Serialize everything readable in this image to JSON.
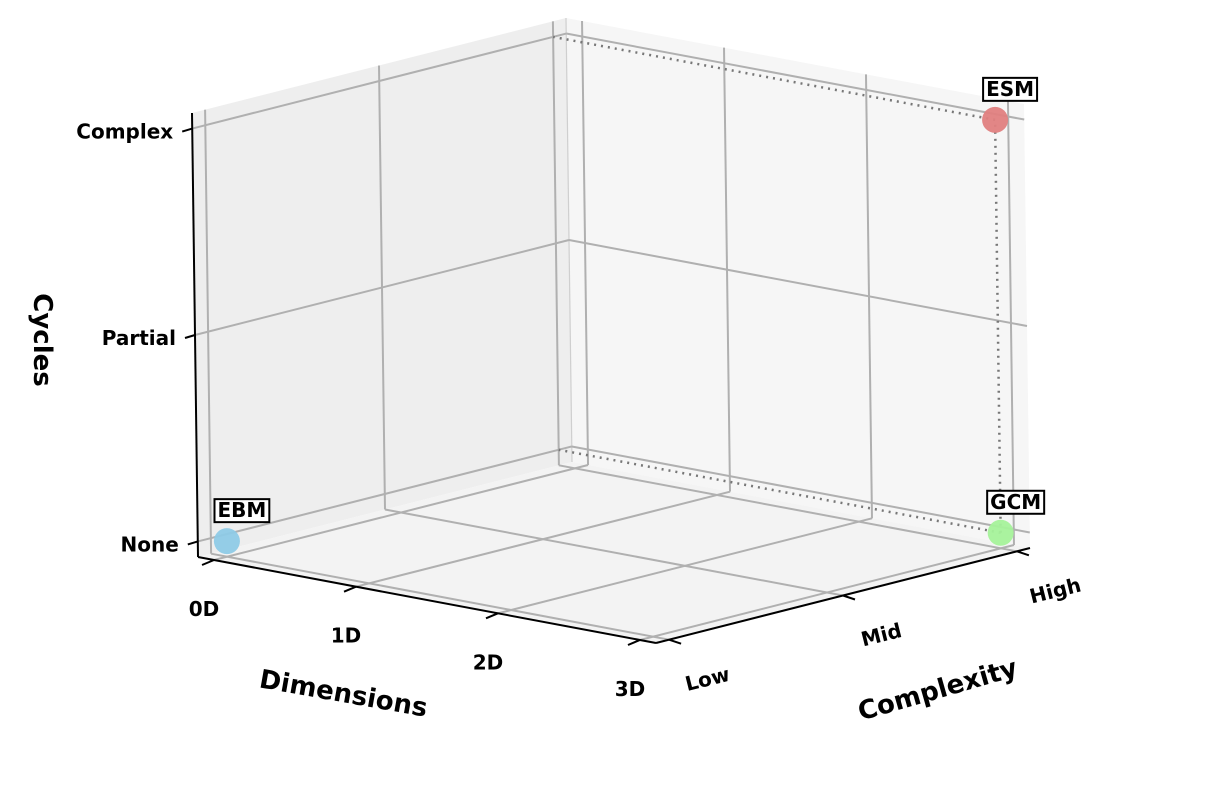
{
  "chart_data": {
    "type": "scatter",
    "title": "",
    "xlabel": "Dimensions",
    "ylabel": "Complexity",
    "zlabel": "Cycles",
    "x_ticks": [
      "0D",
      "1D",
      "2D",
      "3D"
    ],
    "y_ticks": [
      "Low",
      "Mid",
      "High"
    ],
    "z_ticks": [
      "None",
      "Partial",
      "Complex"
    ],
    "grid": true,
    "points": [
      {
        "label": "EBM",
        "x": "0D",
        "y": "Low",
        "z": "None",
        "color": "#8ecae6"
      },
      {
        "label": "GCM",
        "x": "3D",
        "y": "High",
        "z": "None",
        "color": "#a5f29a"
      },
      {
        "label": "ESM",
        "x": "3D",
        "y": "High",
        "z": "Complex",
        "color": "#e07f7f"
      }
    ],
    "guide_lines": [
      {
        "from": "GCM",
        "to": "ESM",
        "style": "dotted"
      }
    ],
    "colors": {
      "pane_left": "#eeeeee",
      "pane_right": "#f6f6f6",
      "pane_floor": "#f3f3f3",
      "grid": "#b0b0b0",
      "axis": "#000000",
      "guide": "#777777"
    }
  }
}
